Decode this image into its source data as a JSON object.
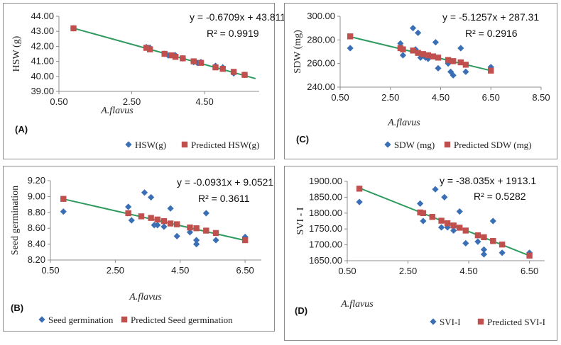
{
  "colors": {
    "observed": "#3a6fb5",
    "predicted": "#c0504d",
    "trend": "#2e9a5e",
    "axis": "#8c8c8c"
  },
  "chart_data": [
    {
      "id": "A",
      "type": "scatter",
      "panel_label": "(A)",
      "xlabel": "A.flavus",
      "ylabel": "HSW (g)",
      "xlim": [
        0.5,
        6.0
      ],
      "xticks": [
        "0.50",
        "2.50",
        "4.50"
      ],
      "xtick_values": [
        0.5,
        2.5,
        4.5
      ],
      "ylim": [
        39.0,
        44.0
      ],
      "yticks": [
        "39.00",
        "40.00",
        "41.00",
        "42.00",
        "43.00",
        "44.00"
      ],
      "ytick_values": [
        39,
        40,
        41,
        42,
        43,
        44
      ],
      "equation": "y = -0.6709x + 43.811",
      "r2": "R² = 0.9919",
      "trend": {
        "slope": -0.6709,
        "intercept": 43.811,
        "x": [
          0.9,
          5.9
        ]
      },
      "legend": [
        "HSW(g)",
        "Predicted HSW(g)"
      ],
      "observed": [
        [
          0.9,
          43.2
        ],
        [
          2.9,
          41.95
        ],
        [
          3.0,
          41.9
        ],
        [
          3.4,
          41.5
        ],
        [
          3.5,
          41.4
        ],
        [
          3.7,
          41.4
        ],
        [
          3.9,
          41.2
        ],
        [
          4.2,
          40.95
        ],
        [
          4.3,
          40.9
        ],
        [
          4.4,
          40.95
        ],
        [
          4.8,
          40.7
        ],
        [
          5.0,
          40.6
        ],
        [
          5.3,
          40.2
        ],
        [
          5.6,
          40.1
        ]
      ],
      "predicted": [
        [
          0.9,
          43.2
        ],
        [
          2.9,
          41.9
        ],
        [
          3.0,
          41.8
        ],
        [
          3.4,
          41.5
        ],
        [
          3.6,
          41.4
        ],
        [
          3.7,
          41.3
        ],
        [
          3.9,
          41.2
        ],
        [
          4.2,
          41.0
        ],
        [
          4.4,
          40.9
        ],
        [
          4.8,
          40.6
        ],
        [
          5.0,
          40.5
        ],
        [
          5.3,
          40.3
        ],
        [
          5.6,
          40.1
        ]
      ]
    },
    {
      "id": "C",
      "type": "scatter",
      "panel_label": "(C)",
      "xlabel": "A.flavus",
      "ylabel": "SDW (mg)",
      "xlim": [
        0.5,
        8.5
      ],
      "xticks": [
        "0.50",
        "2.50",
        "4.50",
        "6.50",
        "8.50"
      ],
      "xtick_values": [
        0.5,
        2.5,
        4.5,
        6.5,
        8.5
      ],
      "ylim": [
        240,
        300
      ],
      "yticks": [
        "240.00",
        "260.00",
        "280.00",
        "300.00"
      ],
      "ytick_values": [
        240,
        260,
        280,
        300
      ],
      "equation": "y = -5.1257x + 287.31",
      "r2": "R² = 0.2916",
      "trend": {
        "slope": -5.1257,
        "intercept": 287.31,
        "x": [
          0.9,
          6.5
        ]
      },
      "legend": [
        "SDW (mg)",
        "Predicted SDW (mg)"
      ],
      "observed": [
        [
          0.9,
          273
        ],
        [
          2.9,
          277
        ],
        [
          3.0,
          267
        ],
        [
          3.4,
          290
        ],
        [
          3.5,
          272
        ],
        [
          3.6,
          286
        ],
        [
          3.7,
          265
        ],
        [
          3.9,
          265
        ],
        [
          4.0,
          264
        ],
        [
          4.3,
          278
        ],
        [
          4.4,
          256
        ],
        [
          4.8,
          260
        ],
        [
          4.9,
          253
        ],
        [
          5.0,
          250
        ],
        [
          5.3,
          273
        ],
        [
          5.5,
          253
        ],
        [
          6.5,
          257
        ]
      ],
      "predicted": [
        [
          0.9,
          283
        ],
        [
          2.9,
          273
        ],
        [
          3.0,
          272
        ],
        [
          3.4,
          271
        ],
        [
          3.6,
          269
        ],
        [
          3.8,
          268
        ],
        [
          4.0,
          267
        ],
        [
          4.2,
          266
        ],
        [
          4.4,
          265
        ],
        [
          4.8,
          263
        ],
        [
          5.0,
          262
        ],
        [
          5.3,
          261
        ],
        [
          5.5,
          259
        ],
        [
          6.5,
          254
        ]
      ]
    },
    {
      "id": "B",
      "type": "scatter",
      "panel_label": "(B)",
      "xlabel": "A.flavus",
      "ylabel": "Seed germination",
      "xlim": [
        0.5,
        7.0
      ],
      "xticks": [
        "0.50",
        "2.50",
        "4.50",
        "6.50"
      ],
      "xtick_values": [
        0.5,
        2.5,
        4.5,
        6.5
      ],
      "ylim": [
        8.2,
        9.2
      ],
      "yticks": [
        "8.20",
        "8.40",
        "8.60",
        "8.80",
        "9.00",
        "9.20"
      ],
      "ytick_values": [
        8.2,
        8.4,
        8.6,
        8.8,
        9.0,
        9.2
      ],
      "equation": "y = -0.0931x + 9.0521",
      "r2": "R² = 0.3611",
      "trend": {
        "slope": -0.0931,
        "intercept": 9.0521,
        "x": [
          0.9,
          6.5
        ]
      },
      "legend": [
        "Seed germination",
        "Predicted Seed germination"
      ],
      "observed": [
        [
          0.9,
          8.81
        ],
        [
          2.9,
          8.87
        ],
        [
          3.0,
          8.7
        ],
        [
          3.4,
          9.05
        ],
        [
          3.6,
          8.99
        ],
        [
          3.7,
          8.64
        ],
        [
          3.8,
          8.64
        ],
        [
          4.0,
          8.62
        ],
        [
          4.2,
          8.85
        ],
        [
          4.4,
          8.5
        ],
        [
          4.8,
          8.55
        ],
        [
          5.0,
          8.45
        ],
        [
          5.0,
          8.4
        ],
        [
          5.3,
          8.79
        ],
        [
          5.6,
          8.45
        ],
        [
          6.5,
          8.49
        ]
      ],
      "predicted": [
        [
          0.9,
          8.97
        ],
        [
          2.9,
          8.79
        ],
        [
          3.3,
          8.75
        ],
        [
          3.6,
          8.73
        ],
        [
          3.8,
          8.71
        ],
        [
          4.0,
          8.69
        ],
        [
          4.2,
          8.66
        ],
        [
          4.4,
          8.65
        ],
        [
          4.8,
          8.61
        ],
        [
          5.0,
          8.6
        ],
        [
          5.3,
          8.57
        ],
        [
          5.6,
          8.54
        ],
        [
          6.5,
          8.45
        ]
      ]
    },
    {
      "id": "D",
      "type": "scatter",
      "panel_label": "(D)",
      "xlabel": "A.flavus",
      "ylabel": "SVI - I",
      "xlim": [
        0.5,
        7.0
      ],
      "xticks": [
        "0.50",
        "2.50",
        "4.50",
        "6.50"
      ],
      "xtick_values": [
        0.5,
        2.5,
        4.5,
        6.5
      ],
      "ylim": [
        1650,
        1900
      ],
      "yticks": [
        "1650.00",
        "1700.00",
        "1750.00",
        "1800.00",
        "1850.00",
        "1900.00"
      ],
      "ytick_values": [
        1650,
        1700,
        1750,
        1800,
        1850,
        1900
      ],
      "equation": "y = -38.035x + 1913.1",
      "r2": "R² = 0.5282",
      "trend": {
        "slope": -38.035,
        "intercept": 1913.1,
        "x": [
          0.9,
          6.5
        ]
      },
      "legend": [
        "SVI-I",
        "Predicted SVI-I"
      ],
      "observed": [
        [
          0.9,
          1835
        ],
        [
          2.9,
          1830
        ],
        [
          3.0,
          1775
        ],
        [
          3.4,
          1875
        ],
        [
          3.6,
          1755
        ],
        [
          3.7,
          1850
        ],
        [
          3.8,
          1755
        ],
        [
          4.0,
          1745
        ],
        [
          4.2,
          1805
        ],
        [
          4.4,
          1705
        ],
        [
          4.8,
          1710
        ],
        [
          5.0,
          1685
        ],
        [
          5.0,
          1670
        ],
        [
          5.3,
          1775
        ],
        [
          5.6,
          1675
        ],
        [
          6.5,
          1675
        ]
      ],
      "predicted": [
        [
          0.9,
          1877
        ],
        [
          2.9,
          1802
        ],
        [
          3.0,
          1800
        ],
        [
          3.3,
          1788
        ],
        [
          3.6,
          1776
        ],
        [
          3.8,
          1768
        ],
        [
          4.0,
          1761
        ],
        [
          4.2,
          1754
        ],
        [
          4.4,
          1745
        ],
        [
          4.8,
          1730
        ],
        [
          5.0,
          1724
        ],
        [
          5.3,
          1712
        ],
        [
          5.6,
          1701
        ],
        [
          6.5,
          1666
        ]
      ]
    }
  ]
}
